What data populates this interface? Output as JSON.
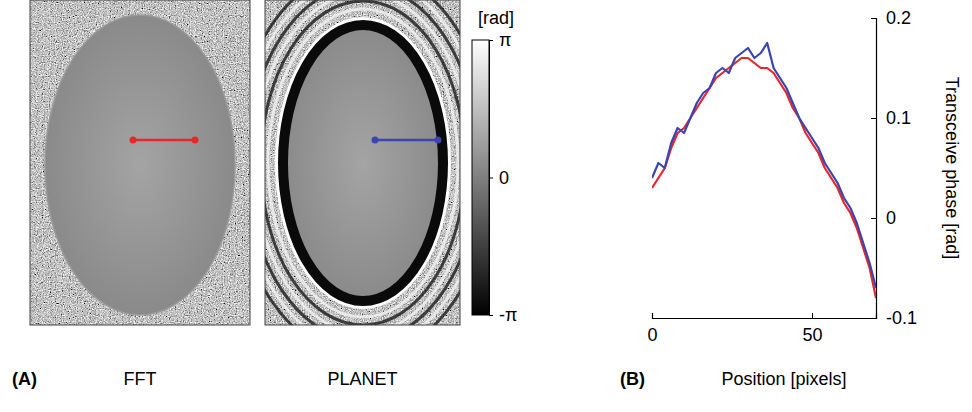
{
  "chart_data": [
    {
      "type": "image",
      "panel": "(A)",
      "images": [
        "FFT",
        "PLANET"
      ],
      "colorbar": {
        "title": "[rad]",
        "range": [
          -3.14159,
          3.14159
        ],
        "ticks": [
          {
            "value": -3.14159,
            "label": "-π"
          },
          0,
          {
            "value": 3.14159,
            "label": "π"
          }
        ]
      }
    },
    {
      "type": "line",
      "panel": "(B)",
      "xlabel": "Position [pixels]",
      "ylabel": "Transceive phase [rad]",
      "x": [
        0,
        2,
        4,
        6,
        8,
        10,
        12,
        14,
        16,
        18,
        20,
        22,
        24,
        26,
        28,
        30,
        32,
        34,
        36,
        38,
        40,
        42,
        44,
        46,
        48,
        50,
        52,
        54,
        56,
        58,
        60,
        62,
        64,
        66,
        68,
        70
      ],
      "series": [
        {
          "color": "#e8262c",
          "values": [
            0.03,
            0.04,
            0.05,
            0.07,
            0.085,
            0.09,
            0.1,
            0.11,
            0.12,
            0.13,
            0.14,
            0.145,
            0.15,
            0.155,
            0.16,
            0.16,
            0.155,
            0.15,
            0.15,
            0.145,
            0.135,
            0.125,
            0.11,
            0.1,
            0.085,
            0.075,
            0.065,
            0.05,
            0.04,
            0.03,
            0.015,
            0.005,
            -0.01,
            -0.03,
            -0.05,
            -0.08
          ]
        },
        {
          "color": "#3a45b0",
          "values": [
            0.04,
            0.055,
            0.05,
            0.075,
            0.09,
            0.085,
            0.1,
            0.115,
            0.125,
            0.13,
            0.145,
            0.15,
            0.145,
            0.16,
            0.165,
            0.17,
            0.16,
            0.165,
            0.175,
            0.15,
            0.14,
            0.13,
            0.115,
            0.1,
            0.09,
            0.08,
            0.07,
            0.055,
            0.045,
            0.035,
            0.02,
            0.01,
            -0.005,
            -0.025,
            -0.045,
            -0.07
          ]
        }
      ],
      "xlim": [
        0,
        70
      ],
      "xticks": [
        0,
        50
      ],
      "ylim": [
        -0.1,
        0.2
      ],
      "yticks": [
        -0.1,
        0,
        0.1,
        0.2
      ]
    }
  ]
}
